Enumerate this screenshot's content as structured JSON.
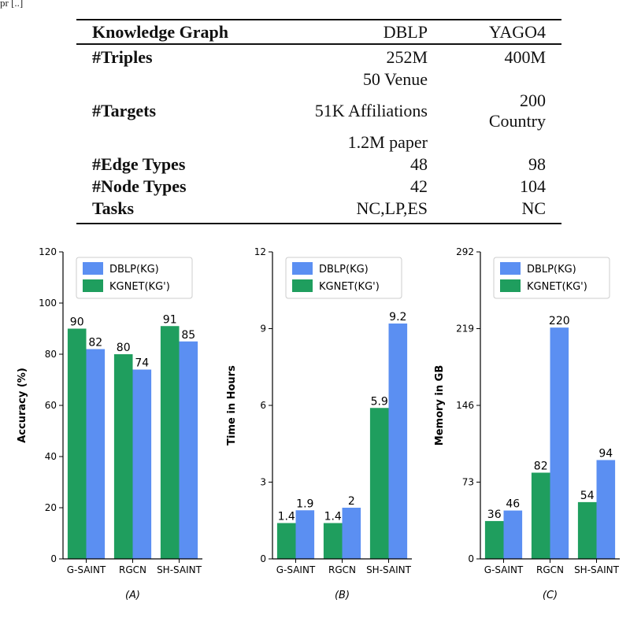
{
  "caption_fragment": "pr                    [..]",
  "table": {
    "header": [
      "Knowledge Graph",
      "DBLP",
      "YAGO4"
    ],
    "rows": [
      {
        "label": "#Triples",
        "dblp": [
          "252M"
        ],
        "yago": [
          "400M"
        ]
      },
      {
        "label": "#Targets",
        "dblp": [
          "50 Venue",
          "51K Affiliations",
          "1.2M paper"
        ],
        "yago": [
          "",
          "200 Country",
          ""
        ]
      },
      {
        "label": "#Edge Types",
        "dblp": [
          "48"
        ],
        "yago": [
          "98"
        ]
      },
      {
        "label": "#Node Types",
        "dblp": [
          "42"
        ],
        "yago": [
          "104"
        ]
      },
      {
        "label": "Tasks",
        "dblp": [
          "NC,LP,ES"
        ],
        "yago": [
          "NC"
        ]
      }
    ]
  },
  "colors": {
    "dblp": "#5b8ff2",
    "kgnet": "#1f9e5e",
    "axis": "#000000"
  },
  "chart_data": [
    {
      "type": "bar",
      "subcaption": "(A)",
      "ylabel": "Accuracy (%)",
      "xlabel": "",
      "categories": [
        "G-SAINT",
        "RGCN",
        "SH-SAINT"
      ],
      "ylim": [
        0,
        120
      ],
      "yticks": [
        "0",
        "20",
        "40",
        "60",
        "80",
        "100",
        "120"
      ],
      "legend_position": "top-center",
      "series": [
        {
          "name": "KGNET(KG')",
          "values": [
            90,
            80,
            91
          ],
          "labels": [
            "90",
            "80",
            "91"
          ]
        },
        {
          "name": "DBLP(KG)",
          "values": [
            82,
            74,
            85
          ],
          "labels": [
            "82",
            "74",
            "85"
          ]
        }
      ]
    },
    {
      "type": "bar",
      "subcaption": "(B)",
      "ylabel": "Time in Hours",
      "xlabel": "",
      "categories": [
        "G-SAINT",
        "RGCN",
        "SH-SAINT"
      ],
      "ylim": [
        0,
        12
      ],
      "yticks": [
        "0",
        "3",
        "6",
        "9",
        "12"
      ],
      "legend_position": "top-center",
      "series": [
        {
          "name": "KGNET(KG')",
          "values": [
            1.4,
            1.4,
            5.9
          ],
          "labels": [
            "1.4",
            "1.4",
            "5.9"
          ]
        },
        {
          "name": "DBLP(KG)",
          "values": [
            1.9,
            2,
            9.2
          ],
          "labels": [
            "1.9",
            "2",
            "9.2"
          ]
        }
      ]
    },
    {
      "type": "bar",
      "subcaption": "(C)",
      "ylabel": "Memory in GB",
      "xlabel": "",
      "categories": [
        "G-SAINT",
        "RGCN",
        "SH-SAINT"
      ],
      "ylim": [
        0,
        292
      ],
      "yticks": [
        "0",
        "73",
        "146",
        "219",
        "292"
      ],
      "legend_position": "top-center",
      "series": [
        {
          "name": "KGNET(KG')",
          "values": [
            36,
            82,
            54
          ],
          "labels": [
            "36",
            "82",
            "54"
          ]
        },
        {
          "name": "DBLP(KG)",
          "values": [
            46,
            220,
            94
          ],
          "labels": [
            "46",
            "220",
            "94"
          ]
        }
      ]
    }
  ]
}
